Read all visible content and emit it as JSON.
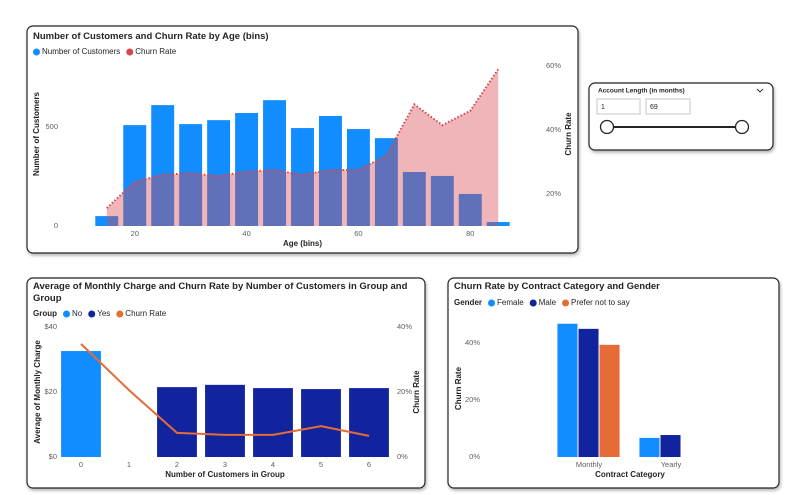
{
  "slicer": {
    "title": "Account Length (in months)",
    "min": "1",
    "max": "69"
  },
  "chart_data": [
    {
      "type": "combo",
      "title": "Number of Customers and Churn Rate by Age (bins)",
      "x": [
        15,
        20,
        25,
        30,
        35,
        40,
        45,
        50,
        55,
        60,
        65,
        70,
        75,
        80,
        85
      ],
      "xlabel": "Age (bins)",
      "ylabel": "Number of Customers",
      "y2label": "Churn Rate",
      "xlim": [
        12,
        88
      ],
      "xticks": [
        20,
        40,
        60,
        80
      ],
      "ylim": [
        0,
        930
      ],
      "yticks": [
        0,
        500
      ],
      "y2lim": [
        10,
        67.5
      ],
      "y2ticks": [
        {
          "value": 20,
          "label": "20%"
        },
        {
          "value": 40,
          "label": "40%"
        },
        {
          "value": 60,
          "label": "60%"
        }
      ],
      "series": [
        {
          "name": "Number of Customers",
          "color": "#118DFF",
          "kind": "bar",
          "values": [
            50,
            510,
            611,
            515,
            535,
            571,
            636,
            495,
            556,
            490,
            444,
            273,
            253,
            162,
            20
          ]
        },
        {
          "name": "Churn Rate",
          "color": "#D64550",
          "kind": "area",
          "axis": "y2",
          "values": [
            15.6,
            23.8,
            26,
            26.5,
            25.6,
            27,
            27.5,
            26,
            27.5,
            27.5,
            32,
            48,
            41.5,
            46,
            59
          ]
        }
      ]
    },
    {
      "type": "combo",
      "title": "Average of Monthly Charge and Churn Rate by Number of Customers in Group and Group",
      "legend_title": "Group",
      "stacked": true,
      "categories": [
        "0",
        "1",
        "2",
        "3",
        "4",
        "5",
        "6"
      ],
      "xlabel": "Number of Customers in Group",
      "ylabel": "Average of Monthly Charge",
      "y2label": "Churn Rate",
      "ylim": [
        0,
        40
      ],
      "yticks": [
        {
          "value": 0,
          "label": "$0"
        },
        {
          "value": 20,
          "label": "$20"
        },
        {
          "value": 40,
          "label": "$40"
        }
      ],
      "y2lim": [
        0,
        40
      ],
      "y2ticks": [
        {
          "value": 0,
          "label": "0%"
        },
        {
          "value": 20,
          "label": "20%"
        },
        {
          "value": 40,
          "label": "40%"
        }
      ],
      "series": [
        {
          "name": "No",
          "color": "#118DFF",
          "kind": "bar",
          "values": [
            32.6,
            null,
            null,
            null,
            null,
            null,
            null
          ]
        },
        {
          "name": "Yes",
          "color": "#12239E",
          "kind": "bar",
          "values": [
            null,
            null,
            21.5,
            22.2,
            21.2,
            20.9,
            21.2
          ]
        },
        {
          "name": "Churn Rate",
          "color": "#E66C37",
          "kind": "line",
          "axis": "y2",
          "values": [
            34.8,
            20.6,
            7.4,
            6.8,
            6.8,
            9.5,
            6.5
          ]
        }
      ]
    },
    {
      "type": "combo",
      "title": "Churn Rate by Contract Category and Gender",
      "legend_title": "Gender",
      "categories": [
        "Monthly",
        "Yearly"
      ],
      "xlabel": "Contract Category",
      "ylabel": "Churn Rate",
      "ylim": [
        0,
        48
      ],
      "yticks": [
        {
          "value": 0,
          "label": "0%"
        },
        {
          "value": 20,
          "label": "20%"
        },
        {
          "value": 40,
          "label": "40%"
        }
      ],
      "series": [
        {
          "name": "Female",
          "color": "#118DFF",
          "kind": "bar",
          "values": [
            46.7,
            6.7
          ]
        },
        {
          "name": "Male",
          "color": "#12239E",
          "kind": "bar",
          "values": [
            44.9,
            7.7
          ]
        },
        {
          "name": "Prefer not to say",
          "color": "#E66C37",
          "kind": "bar",
          "values": [
            39.3,
            null
          ]
        }
      ]
    }
  ]
}
